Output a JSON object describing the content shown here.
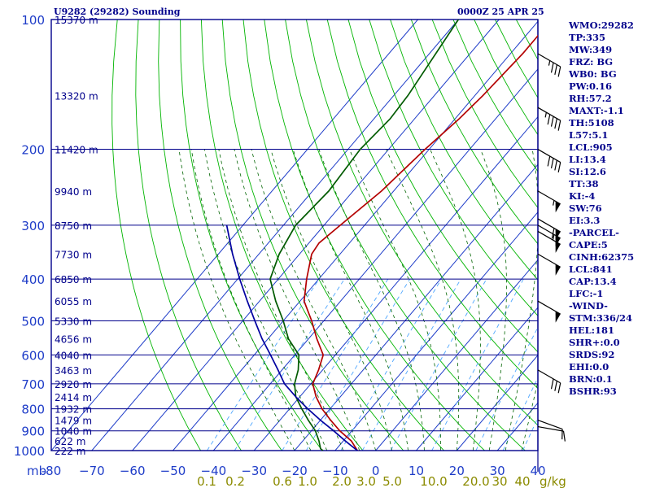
{
  "header": {
    "station": "U9282 (29282) Sounding",
    "time": "0000Z 25 APR 25"
  },
  "colors": {
    "frame": "#00008b",
    "axis_text": "#1e3cc8",
    "dry_adiabat": "#00b400",
    "isotherm": "#1e3cc8",
    "moist_adiabat": "#006400",
    "mixing_ratio": "#4da6ff",
    "temperature": "#b40000",
    "dewpoint": "#005a00",
    "parcel": "#0000a0",
    "mixing_ratio_labels": "#8b8b00",
    "wind_barb": "#000000"
  },
  "indices": [
    "WMO:29282",
    "TP:335",
    "MW:349",
    "FRZ: BG",
    "WB0: BG",
    "PW:0.16",
    "RH:57.2",
    "MAXT:-1.1",
    "TH:5108",
    "L57:5.1",
    "LCL:905",
    "LI:13.4",
    "SI:12.6",
    "TT:38",
    "KI:-4",
    "SW:76",
    "EI:3.3",
    "-PARCEL-",
    "CAPE:5",
    "CINH:62375",
    "LCL:841",
    "CAP:13.4",
    "LFC:-1",
    "-WIND-",
    "STM:336/24",
    "HEL:181",
    "SHR+:0.0",
    "SRDS:92",
    "EHI:0.0",
    "BRN:0.1",
    "BSHR:93"
  ],
  "chart_data": {
    "type": "line",
    "skew_t": true,
    "y_axis": "pressure (mb), log scale",
    "ylim": [
      1000,
      100
    ],
    "xlim": [
      -80,
      40
    ],
    "pressure_ticks": [
      {
        "p": 100,
        "label": "100"
      },
      {
        "p": 200,
        "label": "200"
      },
      {
        "p": 300,
        "label": "300"
      },
      {
        "p": 400,
        "label": "400"
      },
      {
        "p": 500,
        "label": "500"
      },
      {
        "p": 600,
        "label": "600"
      },
      {
        "p": 700,
        "label": "700"
      },
      {
        "p": 800,
        "label": "800"
      },
      {
        "p": 900,
        "label": "900"
      },
      {
        "p": 1000,
        "label": "1000"
      }
    ],
    "x_ticks": [
      {
        "t": -80,
        "label": "-80"
      },
      {
        "t": -70,
        "label": "−70"
      },
      {
        "t": -60,
        "label": "−60"
      },
      {
        "t": -50,
        "label": "−50"
      },
      {
        "t": -40,
        "label": "−40"
      },
      {
        "t": -30,
        "label": "−30"
      },
      {
        "t": -20,
        "label": "−20"
      },
      {
        "t": -10,
        "label": "−10"
      },
      {
        "t": 0,
        "label": "0"
      },
      {
        "t": 10,
        "label": "10"
      },
      {
        "t": 20,
        "label": "20"
      },
      {
        "t": 30,
        "label": "30"
      },
      {
        "t": 40,
        "label": "40"
      }
    ],
    "x_unit_label": "mb",
    "height_labels": [
      {
        "p": 100,
        "label": "15370 m"
      },
      {
        "p": 150,
        "label": "13320 m"
      },
      {
        "p": 200,
        "label": "11420 m"
      },
      {
        "p": 250,
        "label": "9940 m"
      },
      {
        "p": 300,
        "label": "8750 m"
      },
      {
        "p": 350,
        "label": "7730 m"
      },
      {
        "p": 400,
        "label": "6850 m"
      },
      {
        "p": 450,
        "label": "6055 m"
      },
      {
        "p": 500,
        "label": "5330 m"
      },
      {
        "p": 550,
        "label": "4656 m"
      },
      {
        "p": 600,
        "label": "4040 m"
      },
      {
        "p": 650,
        "label": "3463 m"
      },
      {
        "p": 700,
        "label": "2920 m"
      },
      {
        "p": 750,
        "label": "2414 m"
      },
      {
        "p": 800,
        "label": "1932 m"
      },
      {
        "p": 850,
        "label": "1479 m"
      },
      {
        "p": 900,
        "label": "1040 m"
      },
      {
        "p": 950,
        "label": "622 m"
      },
      {
        "p": 1000,
        "label": "222 m"
      }
    ],
    "mixing_ratio_labels": [
      {
        "w": 0.1,
        "label": "0.1"
      },
      {
        "w": 0.2,
        "label": "0.2"
      },
      {
        "w": 0.6,
        "label": "0.6"
      },
      {
        "w": 1.0,
        "label": "1.0"
      },
      {
        "w": 2.0,
        "label": "2.0"
      },
      {
        "w": 3.0,
        "label": "3.0"
      },
      {
        "w": 5.0,
        "label": "5.0"
      },
      {
        "w": 10.0,
        "label": "10.0"
      },
      {
        "w": 20.0,
        "label": "20.0"
      },
      {
        "w": 30.0,
        "label": "30"
      },
      {
        "w": 40.0,
        "label": "40"
      }
    ],
    "mixing_ratio_unit": "g/kg",
    "series": [
      {
        "key": "temperature",
        "points": [
          [
            1010,
            -3
          ],
          [
            1000,
            -4.5
          ],
          [
            950,
            -8
          ],
          [
            900,
            -13
          ],
          [
            850,
            -17.5
          ],
          [
            800,
            -22
          ],
          [
            750,
            -26
          ],
          [
            700,
            -29.5
          ],
          [
            650,
            -31
          ],
          [
            600,
            -33
          ],
          [
            550,
            -38
          ],
          [
            500,
            -43
          ],
          [
            450,
            -49
          ],
          [
            400,
            -53
          ],
          [
            350,
            -57
          ],
          [
            330,
            -57.5
          ],
          [
            300,
            -56
          ],
          [
            250,
            -53
          ],
          [
            200,
            -51
          ],
          [
            170,
            -49
          ],
          [
            150,
            -48
          ],
          [
            120,
            -47
          ],
          [
            100,
            -47
          ]
        ]
      },
      {
        "key": "dewpoint",
        "points": [
          [
            1000,
            -13
          ],
          [
            990,
            -14
          ],
          [
            950,
            -16
          ],
          [
            900,
            -19
          ],
          [
            850,
            -23
          ],
          [
            800,
            -27
          ],
          [
            750,
            -31
          ],
          [
            700,
            -34
          ],
          [
            650,
            -36
          ],
          [
            600,
            -39
          ],
          [
            550,
            -45
          ],
          [
            500,
            -50
          ],
          [
            450,
            -56
          ],
          [
            400,
            -62
          ],
          [
            350,
            -65
          ],
          [
            300,
            -67
          ],
          [
            250,
            -66
          ],
          [
            200,
            -67
          ],
          [
            170,
            -66
          ],
          [
            150,
            -66.5
          ],
          [
            100,
            -70
          ]
        ]
      },
      {
        "key": "parcel",
        "points": [
          [
            1010,
            -3.5
          ],
          [
            1000,
            -4.5
          ],
          [
            950,
            -9.5
          ],
          [
            900,
            -14.5
          ],
          [
            850,
            -20
          ],
          [
            800,
            -25.5
          ],
          [
            750,
            -31
          ],
          [
            700,
            -36.5
          ],
          [
            650,
            -41
          ],
          [
            600,
            -46
          ],
          [
            550,
            -51.5
          ],
          [
            500,
            -57
          ],
          [
            450,
            -63
          ],
          [
            400,
            -69.5
          ],
          [
            350,
            -76.5
          ],
          [
            300,
            -84
          ]
        ]
      }
    ],
    "winds": [
      {
        "p": 120,
        "dir": 300,
        "kt": 35
      },
      {
        "p": 160,
        "dir": 300,
        "kt": 45
      },
      {
        "p": 200,
        "dir": 300,
        "kt": 40
      },
      {
        "p": 250,
        "dir": 300,
        "kt": 55
      },
      {
        "p": 290,
        "dir": 300,
        "kt": 60
      },
      {
        "p": 300,
        "dir": 300,
        "kt": 55
      },
      {
        "p": 310,
        "dir": 300,
        "kt": 50
      },
      {
        "p": 350,
        "dir": 300,
        "kt": 50
      },
      {
        "p": 450,
        "dir": 300,
        "kt": 50
      },
      {
        "p": 650,
        "dir": 300,
        "kt": 30
      },
      {
        "p": 850,
        "dir": 290,
        "kt": 10
      },
      {
        "p": 880,
        "dir": 280,
        "kt": 10
      }
    ]
  }
}
